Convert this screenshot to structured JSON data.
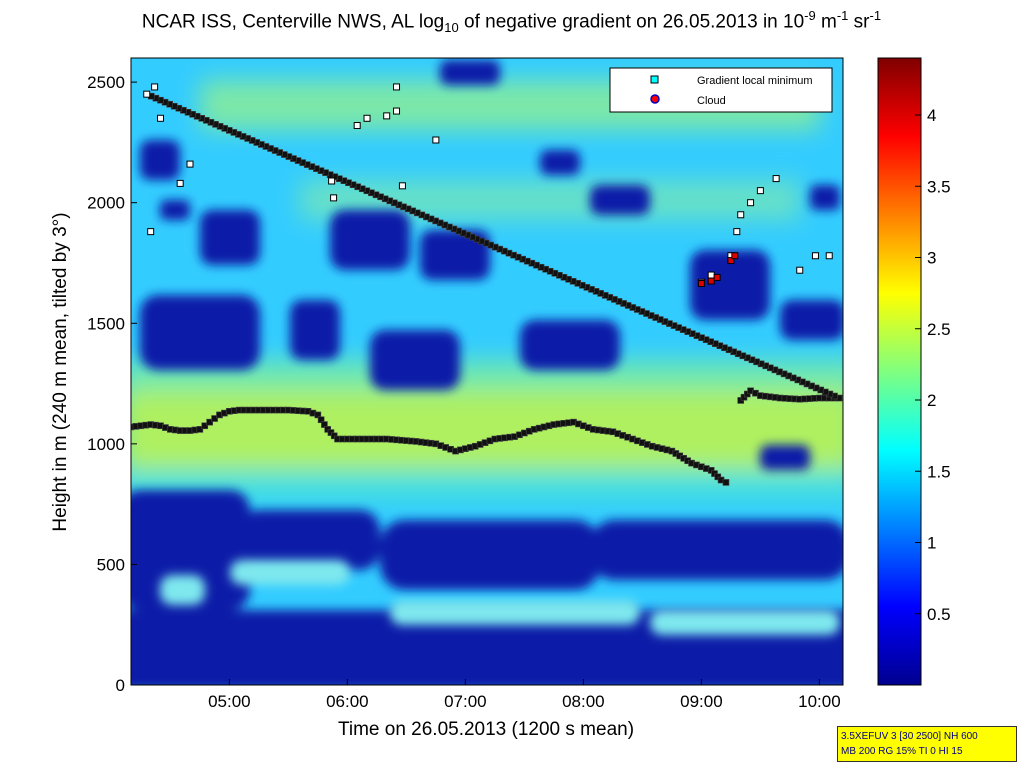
{
  "chart_data": {
    "type": "heatmap",
    "title": {
      "prefix": "NCAR ISS, Centerville NWS, AL log",
      "sub": "10",
      "middle": " of negative gradient on 26.05.2013 in 10",
      "sup1": "-9",
      "middle2": " m",
      "sup2": "-1",
      "middle3": " sr",
      "sup3": "-1"
    },
    "xlabel": "Time on 26.05.2013 (1200 s mean)",
    "ylabel": "Height in m (240 m mean, tilted by 3°)",
    "xlim": [
      "04:10",
      "10:12"
    ],
    "ylim": [
      0,
      2600
    ],
    "x_ticks": [
      "05:00",
      "06:00",
      "07:00",
      "08:00",
      "09:00",
      "10:00"
    ],
    "y_ticks": [
      0,
      500,
      1000,
      1500,
      2000,
      2500
    ],
    "colorbar": {
      "range": [
        0,
        4.4
      ],
      "ticks": [
        0.5,
        1,
        1.5,
        2,
        2.5,
        3,
        3.5,
        4
      ],
      "colormap": "jet"
    },
    "legend": {
      "placement": "top-right",
      "entries": [
        {
          "label": "Gradient local minimum",
          "marker": "square",
          "color": "#00ffff"
        },
        {
          "label": "Cloud",
          "marker": "circle",
          "color": "#ff0000"
        }
      ]
    },
    "series": [
      {
        "name": "Gradient local minimum",
        "points": [
          [
            "04:10",
            1070
          ],
          [
            "04:15",
            1075
          ],
          [
            "04:20",
            1080
          ],
          [
            "04:25",
            1075
          ],
          [
            "04:30",
            1060
          ],
          [
            "04:35",
            1055
          ],
          [
            "04:40",
            1055
          ],
          [
            "04:45",
            1060
          ],
          [
            "04:50",
            1090
          ],
          [
            "04:55",
            1120
          ],
          [
            "05:00",
            1135
          ],
          [
            "05:05",
            1140
          ],
          [
            "05:15",
            1140
          ],
          [
            "05:30",
            1140
          ],
          [
            "05:40",
            1135
          ],
          [
            "05:45",
            1120
          ],
          [
            "05:50",
            1060
          ],
          [
            "05:55",
            1020
          ],
          [
            "06:05",
            1020
          ],
          [
            "06:20",
            1020
          ],
          [
            "06:35",
            1010
          ],
          [
            "06:45",
            1000
          ],
          [
            "06:55",
            970
          ],
          [
            "07:05",
            990
          ],
          [
            "07:15",
            1020
          ],
          [
            "07:25",
            1030
          ],
          [
            "07:35",
            1060
          ],
          [
            "07:45",
            1080
          ],
          [
            "07:55",
            1090
          ],
          [
            "08:05",
            1060
          ],
          [
            "08:15",
            1050
          ],
          [
            "08:25",
            1020
          ],
          [
            "08:35",
            990
          ],
          [
            "08:45",
            970
          ],
          [
            "08:55",
            920
          ],
          [
            "09:05",
            890
          ],
          [
            "09:10",
            850
          ],
          [
            "09:15",
            830
          ],
          [
            "09:20",
            1180
          ],
          [
            "09:25",
            1220
          ],
          [
            "09:30",
            1200
          ],
          [
            "09:40",
            1190
          ],
          [
            "09:50",
            1185
          ],
          [
            "10:00",
            1190
          ],
          [
            "10:10",
            1190
          ],
          [
            "04:18",
            2450
          ],
          [
            "04:22",
            2480
          ],
          [
            "04:25",
            2350
          ],
          [
            "04:20",
            1880
          ],
          [
            "04:40",
            2160
          ],
          [
            "04:35",
            2080
          ],
          [
            "05:52",
            2090
          ],
          [
            "05:53",
            2020
          ],
          [
            "06:05",
            2320
          ],
          [
            "06:10",
            2350
          ],
          [
            "06:20",
            2360
          ],
          [
            "06:25",
            2380
          ],
          [
            "06:25",
            2480
          ],
          [
            "06:28",
            2070
          ],
          [
            "06:45",
            2260
          ],
          [
            "09:00",
            1670
          ],
          [
            "09:05",
            1700
          ],
          [
            "09:15",
            1780
          ],
          [
            "09:18",
            1880
          ],
          [
            "09:20",
            1950
          ],
          [
            "09:25",
            2000
          ],
          [
            "09:30",
            2050
          ],
          [
            "09:38",
            2100
          ],
          [
            "09:50",
            1720
          ],
          [
            "09:58",
            1780
          ],
          [
            "10:05",
            1780
          ]
        ]
      },
      {
        "name": "Cloud",
        "points": [
          [
            "09:00",
            1665
          ],
          [
            "09:05",
            1675
          ],
          [
            "09:08",
            1690
          ],
          [
            "09:15",
            1760
          ],
          [
            "09:17",
            1780
          ]
        ]
      }
    ],
    "annotation": {
      "line1": "3.5XEFUV 3 [30 2500] NH 600",
      "line2": "MB 200 RG 15% TI 0 HI 15"
    }
  }
}
